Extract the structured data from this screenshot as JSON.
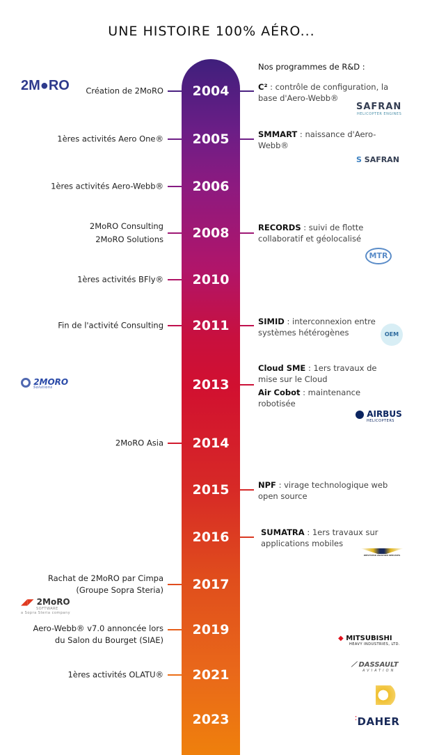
{
  "title": "UNE HISTOIRE 100% AÉRO...",
  "rd_heading": "Nos programmes de R&D :",
  "years": [
    "2004",
    "2005",
    "2006",
    "2008",
    "2010",
    "2011",
    "2013",
    "2014",
    "2015",
    "2016",
    "2017",
    "2019",
    "2021",
    "2023"
  ],
  "left": {
    "y2004": "Création de 2MoRO",
    "y2005": "1ères activités Aero One®",
    "y2006": "1ères activités Aero-Webb®",
    "y2008a": "2MoRO Consulting",
    "y2008b": "2MoRO Solutions",
    "y2010": "1ères activités BFly®",
    "y2011": "Fin de l'activité Consulting",
    "y2014": "2MoRO Asia",
    "y2017a": "Rachat de 2MoRO par Cimpa",
    "y2017b": "(Groupe Sopra Steria)",
    "y2019a": "Aero-Webb® v7.0 annoncée lors",
    "y2019b": "du Salon du Bourget (SIAE)",
    "y2021": "1ères activités OLATU®"
  },
  "right": {
    "c2": {
      "name": "C²",
      "desc": " : contrôle de configuration, la base d'Aero-Webb®"
    },
    "smmart": {
      "name": "SMMART",
      "desc": " : naissance d'Aero-Webb®"
    },
    "records": {
      "name": "RECORDS",
      "desc": " : suivi de flotte collaboratif et géolocalisé"
    },
    "simid": {
      "name": "SIMID",
      "desc": " : interconnexion entre systèmes hétérogènes"
    },
    "cloud": {
      "name": "Cloud SME",
      "desc": " : 1ers travaux de mise sur le Cloud"
    },
    "cobot": {
      "name": "Air Cobot",
      "desc": " : maintenance robotisée"
    },
    "npf": {
      "name": "NPF",
      "desc": " : virage technologique web open source"
    },
    "sumatra": {
      "name": "SUMATRA",
      "desc": " : 1ers travaux sur applications mobiles"
    }
  },
  "logos": {
    "moro2004": "2M●RO",
    "safran1": "SAFRAN",
    "safran1sub": "HELICOPTER ENGINES",
    "safran2": "SAFRAN",
    "mtr": "MTR",
    "oem": "OEM",
    "moro2013": "2MORO",
    "moro2013sub": "Solutions",
    "airbus": "AIRBUS",
    "airbussub": "HELICOPTERS",
    "weststar": "WESTSTAR AVIATION SERVICES",
    "moro2017": "2MoRO",
    "moro2017sub": "SOFTWARE",
    "moro2017tag": "a Sopra Steria company",
    "mitsubishi": "MITSUBISHI",
    "mitsubishisub": "HEAVY INDUSTRIES, LTD.",
    "dassault": "DASSAULT",
    "dassaultsub": "AVIATION",
    "daher": "DAHER"
  }
}
